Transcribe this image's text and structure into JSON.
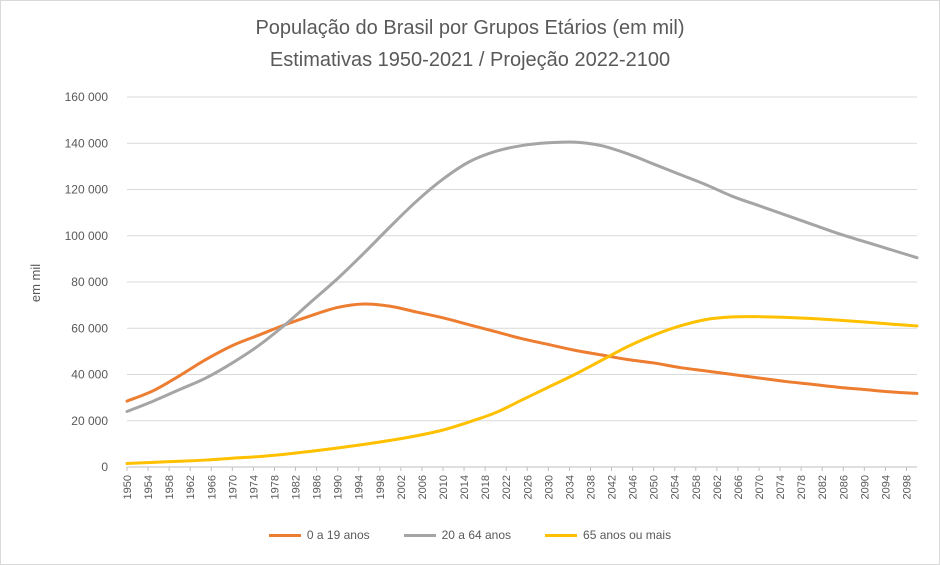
{
  "title": "População do Brasil por Grupos Etários (em mil)",
  "subtitle": "Estimativas 1950-2021 / Projeção 2022-2100",
  "chart_data": {
    "type": "line",
    "title": "População do Brasil por Grupos Etários (em mil)",
    "subtitle": "Estimativas 1950-2021 / Projeção 2022-2100",
    "xlabel": "",
    "ylabel": "em mil",
    "ylim": [
      0,
      160000
    ],
    "xlim": [
      1950,
      2100
    ],
    "y_ticks": [
      0,
      20000,
      40000,
      60000,
      80000,
      100000,
      120000,
      140000,
      160000
    ],
    "y_tick_labels": [
      "0",
      "20 000",
      "40 000",
      "60 000",
      "80 000",
      "100 000",
      "120 000",
      "140 000",
      "160 000"
    ],
    "x_tick_labels": [
      "1950",
      "1954",
      "1958",
      "1962",
      "1966",
      "1970",
      "1974",
      "1978",
      "1982",
      "1986",
      "1990",
      "1994",
      "1998",
      "2002",
      "2006",
      "2010",
      "2014",
      "2018",
      "2022",
      "2026",
      "2030",
      "2034",
      "2038",
      "2042",
      "2046",
      "2050",
      "2054",
      "2058",
      "2062",
      "2066",
      "2070",
      "2074",
      "2078",
      "2082",
      "2086",
      "2090",
      "2094",
      "2098"
    ],
    "grid": true,
    "legend_position": "bottom",
    "x": [
      1950,
      1955,
      1960,
      1965,
      1970,
      1975,
      1980,
      1985,
      1990,
      1995,
      2000,
      2005,
      2010,
      2015,
      2020,
      2025,
      2030,
      2035,
      2040,
      2045,
      2050,
      2055,
      2060,
      2065,
      2070,
      2075,
      2080,
      2085,
      2090,
      2095,
      2100
    ],
    "series": [
      {
        "name": "0 a 19 anos",
        "color": "#ed7d31",
        "values": [
          28500,
          33000,
          39500,
          46500,
          52500,
          57000,
          61500,
          65500,
          69000,
          70500,
          69500,
          67000,
          64500,
          61500,
          58500,
          55500,
          53000,
          50500,
          48500,
          46500,
          45000,
          43000,
          41500,
          40000,
          38500,
          37000,
          35800,
          34500,
          33500,
          32500,
          31800
        ]
      },
      {
        "name": "20 a 64 anos",
        "color": "#a5a5a5",
        "values": [
          24000,
          28500,
          33500,
          38500,
          45000,
          52500,
          61500,
          71500,
          81500,
          92500,
          104000,
          115000,
          124500,
          132000,
          136500,
          139000,
          140200,
          140500,
          139000,
          135500,
          131000,
          126500,
          122000,
          117000,
          113000,
          109000,
          105000,
          101000,
          97500,
          94000,
          90500
        ]
      },
      {
        "name": "65 anos ou mais",
        "color": "#ffc000",
        "values": [
          1500,
          2000,
          2500,
          3000,
          3800,
          4500,
          5500,
          6800,
          8200,
          9800,
          11500,
          13500,
          16000,
          19500,
          23500,
          29000,
          34500,
          40000,
          46000,
          52000,
          57000,
          61000,
          63800,
          64900,
          65000,
          64700,
          64200,
          63500,
          62700,
          61800,
          61000
        ]
      }
    ]
  }
}
